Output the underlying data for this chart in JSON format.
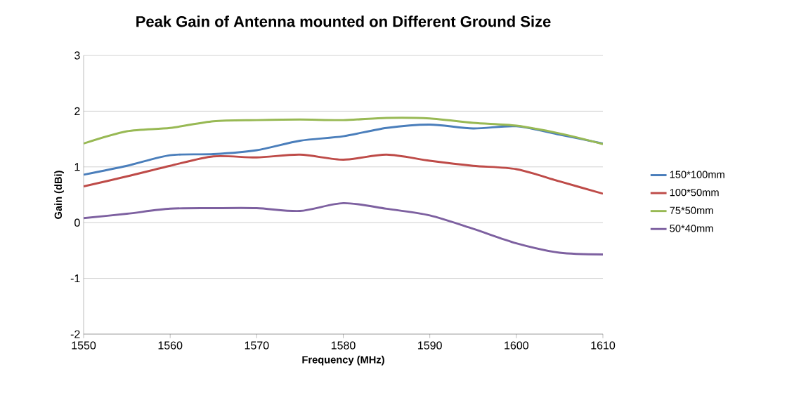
{
  "chart_data": {
    "type": "line",
    "title": "Peak Gain of Antenna mounted on Different Ground Size",
    "xlabel": "Frequency  (MHz)",
    "ylabel": "Gain (dBi)",
    "x": [
      1550,
      1555,
      1560,
      1565,
      1570,
      1575,
      1580,
      1585,
      1590,
      1595,
      1600,
      1605,
      1610
    ],
    "series": [
      {
        "name": "150*100mm",
        "color": "#4a7ebb",
        "values": [
          0.86,
          1.02,
          1.21,
          1.23,
          1.3,
          1.47,
          1.55,
          1.7,
          1.76,
          1.69,
          1.73,
          1.58,
          1.42
        ]
      },
      {
        "name": "100*50mm",
        "color": "#be4b48",
        "values": [
          0.65,
          0.83,
          1.02,
          1.19,
          1.17,
          1.22,
          1.13,
          1.22,
          1.11,
          1.02,
          0.96,
          0.74,
          0.52
        ]
      },
      {
        "name": "75*50mm",
        "color": "#98b954",
        "values": [
          1.42,
          1.64,
          1.7,
          1.82,
          1.84,
          1.85,
          1.84,
          1.88,
          1.87,
          1.79,
          1.74,
          1.6,
          1.41
        ]
      },
      {
        "name": "50*40mm",
        "color": "#7d60a0",
        "values": [
          0.08,
          0.16,
          0.25,
          0.26,
          0.26,
          0.21,
          0.35,
          0.25,
          0.13,
          -0.11,
          -0.37,
          -0.54,
          -0.57
        ]
      }
    ],
    "xlim": [
      1550,
      1610
    ],
    "xticks": [
      1550,
      1560,
      1570,
      1580,
      1590,
      1600,
      1610
    ],
    "ylim": [
      -2,
      3
    ],
    "yticks": [
      -2,
      -1,
      0,
      1,
      2,
      3
    ],
    "grid": "y",
    "legend": "right",
    "marker": "none",
    "line_style": "solid"
  }
}
